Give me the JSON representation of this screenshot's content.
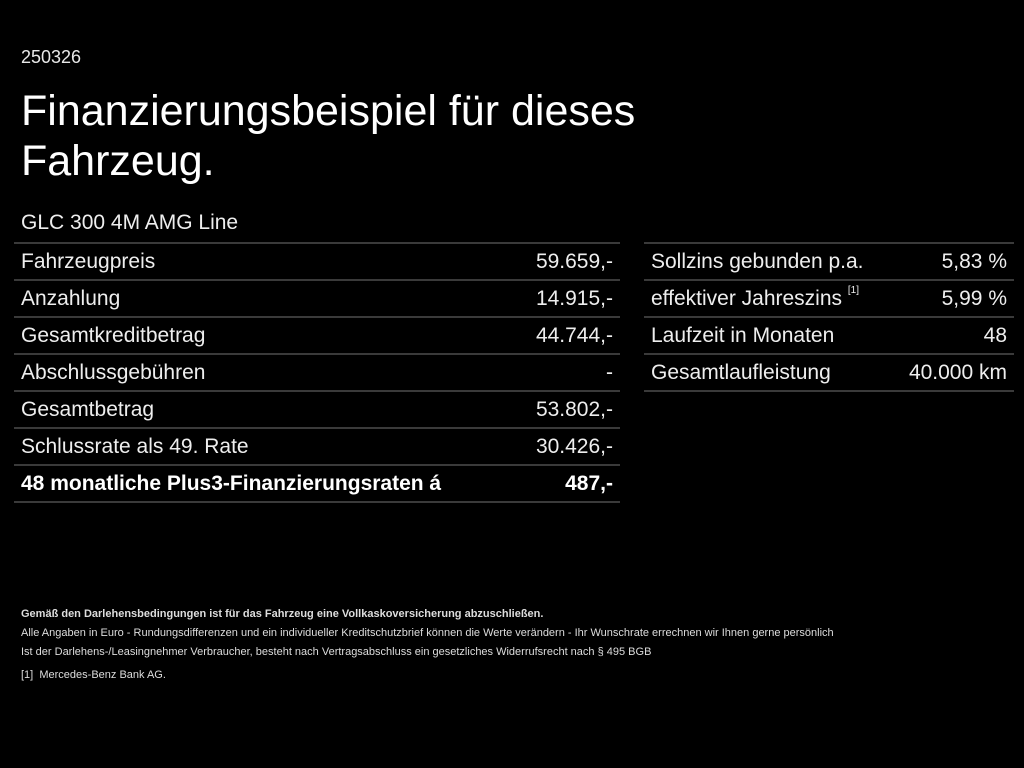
{
  "header": {
    "code": "250326",
    "title": "Finanzierungsbeispiel für dieses Fahrzeug.",
    "model": "GLC 300 4M AMG Line"
  },
  "left_table": [
    {
      "label": "Fahrzeugpreis",
      "value": "59.659,-"
    },
    {
      "label": "Anzahlung",
      "value": "14.915,-"
    },
    {
      "label": "Gesamtkreditbetrag",
      "value": "44.744,-"
    },
    {
      "label": "Abschlussgebühren",
      "value": "-"
    },
    {
      "label": "Gesamtbetrag",
      "value": "53.802,-"
    },
    {
      "label": "Schlussrate als 49. Rate",
      "value": "30.426,-"
    },
    {
      "label": "48 monatliche Plus3-Finanzierungsraten á",
      "value": "487,-"
    }
  ],
  "right_table": [
    {
      "label": "Sollzins gebunden p.a.",
      "value": "5,83 %"
    },
    {
      "label": "effektiver Jahreszins",
      "sup": "[1]",
      "value": "5,99 %"
    },
    {
      "label": "Laufzeit in Monaten",
      "value": "48"
    },
    {
      "label": "Gesamtlaufleistung",
      "value": "40.000 km"
    }
  ],
  "notes": {
    "insurance": "Gemäß den Darlehensbedingungen ist für das Fahrzeug eine Vollkaskoversicherung abzuschließen.",
    "line1": "Alle Angaben in Euro - Rundungsdifferenzen und ein individueller Kreditschutzbrief können die Werte verändern - Ihr Wunschrate errechnen wir Ihnen gerne persönlich",
    "line2": "Ist der Darlehens-/Leasingnehmer Verbraucher, besteht nach Vertragsabschluss ein gesetzliches Widerrufsrecht nach § 495 BGB",
    "footnote_marker": "[1]",
    "footnote": "Mercedes-Benz Bank AG."
  }
}
